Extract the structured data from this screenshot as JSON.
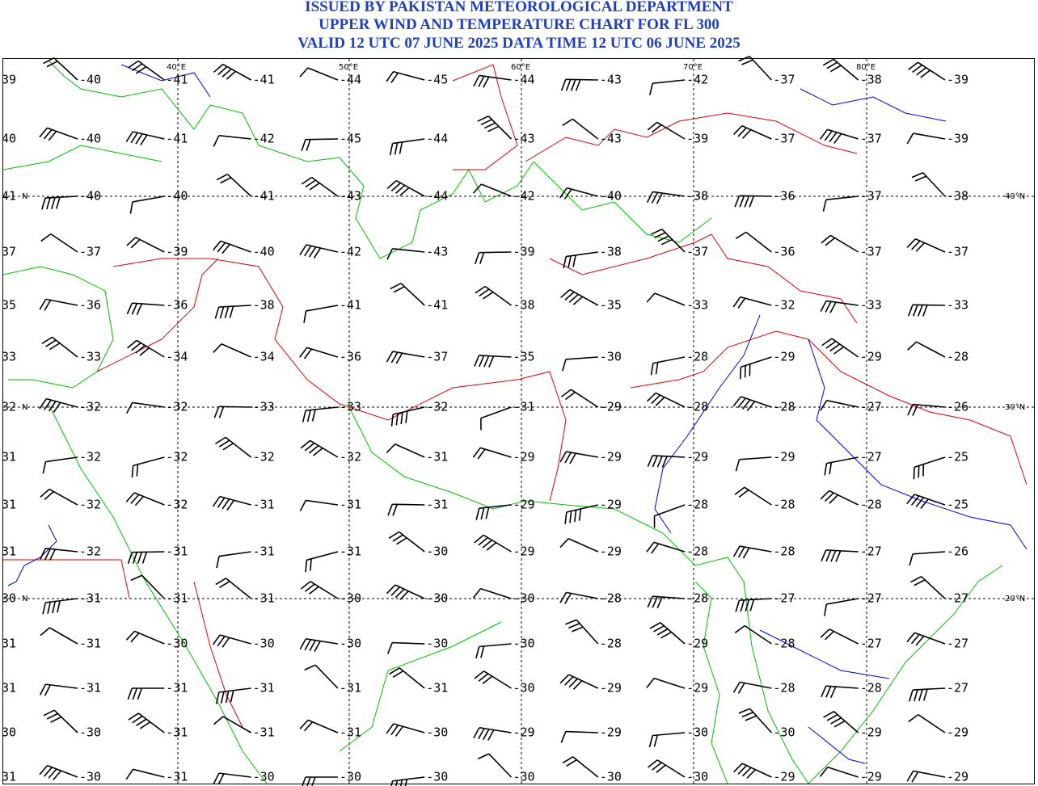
{
  "header": {
    "lines": [
      "ISSUED BY PAKISTAN METEOROLOGICAL DEPARTMENT",
      "UPPER WIND AND TEMPERATURE CHART FOR FL 300",
      "VALID 12 UTC 07 JUNE 2025 DATA TIME 12 UTC 06 JUNE 2025"
    ]
  },
  "map": {
    "longitude_labels": [
      "40°E",
      "50°E",
      "60°E",
      "70°E",
      "80°E"
    ],
    "latitude_labels_left": [
      "N",
      "N",
      "N"
    ],
    "latitude_labels_right": [
      "40°N",
      "30°N",
      "20°N"
    ],
    "temperatures": [
      [
        "39",
        "-40",
        "-41",
        "-41",
        "-44",
        "-45",
        "-44",
        "-43",
        "-42",
        "-37",
        "-38",
        "-39"
      ],
      [
        "40",
        "-40",
        "-41",
        "-42",
        "-45",
        "-44",
        "-43",
        "-43",
        "-39",
        "-37",
        "-37",
        "-39"
      ],
      [
        "41",
        "-40",
        "-40",
        "-41",
        "-43",
        "-44",
        "-42",
        "-40",
        "-38",
        "-36",
        "-37",
        "-38"
      ],
      [
        "37",
        "-37",
        "-39",
        "-40",
        "-42",
        "-43",
        "-39",
        "-38",
        "-37",
        "-36",
        "-37",
        "-37"
      ],
      [
        "35",
        "-36",
        "-36",
        "-38",
        "-41",
        "-41",
        "-38",
        "-35",
        "-33",
        "-32",
        "-33",
        "-33"
      ],
      [
        "33",
        "-33",
        "-34",
        "-34",
        "-36",
        "-37",
        "-35",
        "-30",
        "-28",
        "-29",
        "-29",
        "-28"
      ],
      [
        "32",
        "-32",
        "-32",
        "-33",
        "-33",
        "-32",
        "-31",
        "-29",
        "-28",
        "-28",
        "-27",
        "-26"
      ],
      [
        "31",
        "-32",
        "-32",
        "-32",
        "-32",
        "-31",
        "-29",
        "-29",
        "-29",
        "-29",
        "-27",
        "-25"
      ],
      [
        "31",
        "-32",
        "-32",
        "-31",
        "-31",
        "-31",
        "-29",
        "-29",
        "-28",
        "-28",
        "-28",
        "-25"
      ],
      [
        "31",
        "-32",
        "-31",
        "-31",
        "-31",
        "-30",
        "-29",
        "-29",
        "-28",
        "-28",
        "-27",
        "-26"
      ],
      [
        "30",
        "-31",
        "-31",
        "-31",
        "-30",
        "-30",
        "-30",
        "-28",
        "-28",
        "-27",
        "-27",
        "-27"
      ],
      [
        "31",
        "-31",
        "-30",
        "-30",
        "-30",
        "-30",
        "-30",
        "-28",
        "-29",
        "-28",
        "-27",
        "-27"
      ],
      [
        "31",
        "-31",
        "-31",
        "-31",
        "-31",
        "-31",
        "-30",
        "-29",
        "-29",
        "-28",
        "-28",
        "-27"
      ],
      [
        "30",
        "-30",
        "-31",
        "-31",
        "-31",
        "-30",
        "-29",
        "-29",
        "-30",
        "-30",
        "-29",
        "-29"
      ],
      [
        "31",
        "-30",
        "-31",
        "-30",
        "-30",
        "-30",
        "-30",
        "-30",
        "-30",
        "-29",
        "-29",
        "-29"
      ]
    ]
  }
}
